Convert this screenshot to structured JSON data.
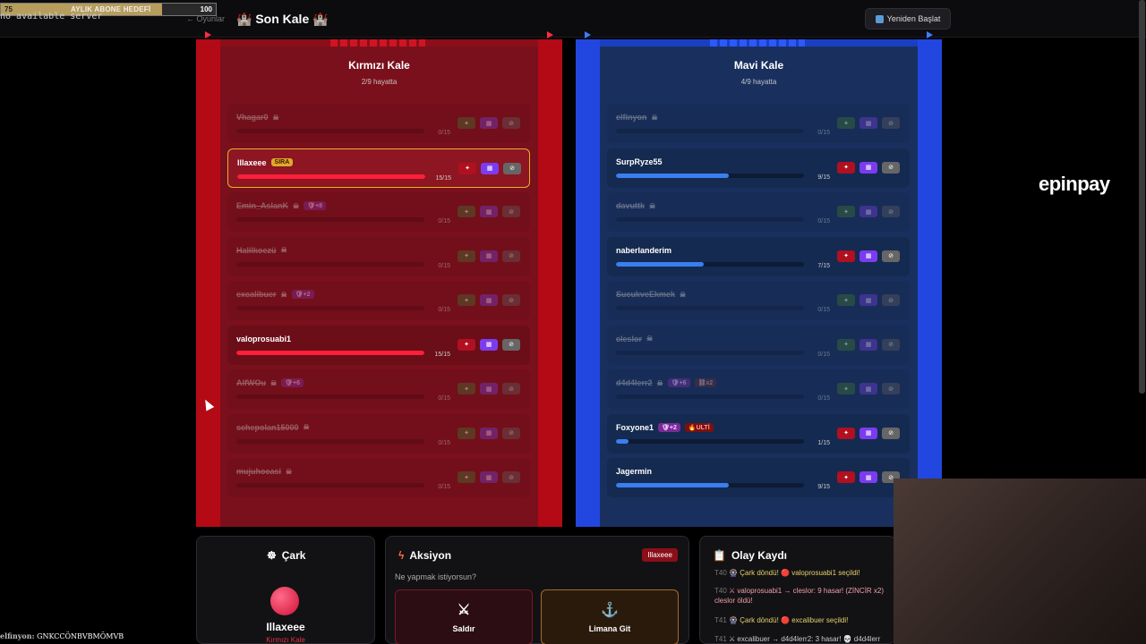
{
  "goal": {
    "current": "75",
    "title": "AYLIK ABONE HEDEFİ",
    "max": "100",
    "progress": 0.75
  },
  "overlay_text": "no available server",
  "header": {
    "back": "← Oyunlar",
    "title": "🏰 Son Kale 🏰",
    "restart": "Yeniden Başlat"
  },
  "red": {
    "name": "Kırmızı Kale",
    "alive": "2/9 hayatta",
    "players": [
      {
        "name": "Vhagar0",
        "hp": "0/15",
        "hp_fraction": 0,
        "dead": true,
        "tags": []
      },
      {
        "name": "Illaxeee",
        "hp": "15/15",
        "hp_fraction": 1,
        "dead": false,
        "turn": true,
        "tags": [
          "SIRA"
        ]
      },
      {
        "name": "Emin_AslanK",
        "hp": "0/15",
        "hp_fraction": 0,
        "dead": true,
        "tags": [
          "🛡+8"
        ]
      },
      {
        "name": "Halilkoezü",
        "hp": "0/15",
        "hp_fraction": 0,
        "dead": true,
        "tags": []
      },
      {
        "name": "excalibuer",
        "hp": "0/15",
        "hp_fraction": 0,
        "dead": true,
        "tags": [
          "🛡+2"
        ]
      },
      {
        "name": "valoprosuabi1",
        "hp": "15/15",
        "hp_fraction": 1,
        "dead": false,
        "tags": []
      },
      {
        "name": "AlfWOu",
        "hp": "0/15",
        "hp_fraction": 0,
        "dead": true,
        "tags": [
          "🛡+6"
        ]
      },
      {
        "name": "schepolan15000",
        "hp": "0/15",
        "hp_fraction": 0,
        "dead": true,
        "tags": []
      },
      {
        "name": "mujuhocasi",
        "hp": "0/15",
        "hp_fraction": 0,
        "dead": true,
        "tags": []
      }
    ]
  },
  "blue": {
    "name": "Mavi Kale",
    "alive": "4/9 hayatta",
    "players": [
      {
        "name": "elfinyon",
        "hp": "0/15",
        "hp_fraction": 0,
        "dead": true,
        "tags": []
      },
      {
        "name": "SurpRyze55",
        "hp": "9/15",
        "hp_fraction": 0.6,
        "dead": false,
        "tags": []
      },
      {
        "name": "davuttk",
        "hp": "0/15",
        "hp_fraction": 0,
        "dead": true,
        "tags": []
      },
      {
        "name": "naberlanderim",
        "hp": "7/15",
        "hp_fraction": 0.4667,
        "dead": false,
        "tags": []
      },
      {
        "name": "SucukveEkmek",
        "hp": "0/15",
        "hp_fraction": 0,
        "dead": true,
        "tags": []
      },
      {
        "name": "cleslor",
        "hp": "0/15",
        "hp_fraction": 0,
        "dead": true,
        "tags": []
      },
      {
        "name": "d4d4lerr2",
        "hp": "0/15",
        "hp_fraction": 0,
        "dead": true,
        "tags": [
          "🛡+6",
          "⛓x2"
        ]
      },
      {
        "name": "Foxyone1",
        "hp": "1/15",
        "hp_fraction": 0.0667,
        "dead": false,
        "tags": [
          "🛡+2",
          "🔥ULTİ"
        ]
      },
      {
        "name": "Jagermin",
        "hp": "9/15",
        "hp_fraction": 0.6,
        "dead": false,
        "tags": []
      }
    ]
  },
  "wheel": {
    "title": "Çark",
    "name": "Illaxeee",
    "team": "Kırmızı Kale"
  },
  "action": {
    "title": "Aksiyon",
    "who": "Illaxeee",
    "question": "Ne yapmak istiyorsun?",
    "attack": "Saldır",
    "harbor": "Limana Git"
  },
  "log": {
    "title": "Olay Kaydı",
    "lines": [
      {
        "t": "T40",
        "text": "🎡 Çark döndü! 🔴 valoprosuabi1 seçildi!",
        "style": "y"
      },
      {
        "t": "T40",
        "text": "⚔ valoprosuabi1 → cleslor: 9 hasar! (ZİNCİR x2)",
        "style": "r"
      },
      {
        "t": "",
        "text": "cleslor öldü!",
        "style": "r"
      },
      {
        "t": "T41",
        "text": "🎡 Çark döndü! 🔴 excalibuer seçildi!",
        "style": "y"
      },
      {
        "t": "T41",
        "text": "⚔ excalibuer → d4d4lerr2: 3 hasar! 💀 d4d4lerr",
        "style": ""
      }
    ]
  },
  "brand": "epinpay",
  "chat": {
    "user": "elfinyon:",
    "message": "GNKCCÖNBVBMÖMVB"
  }
}
